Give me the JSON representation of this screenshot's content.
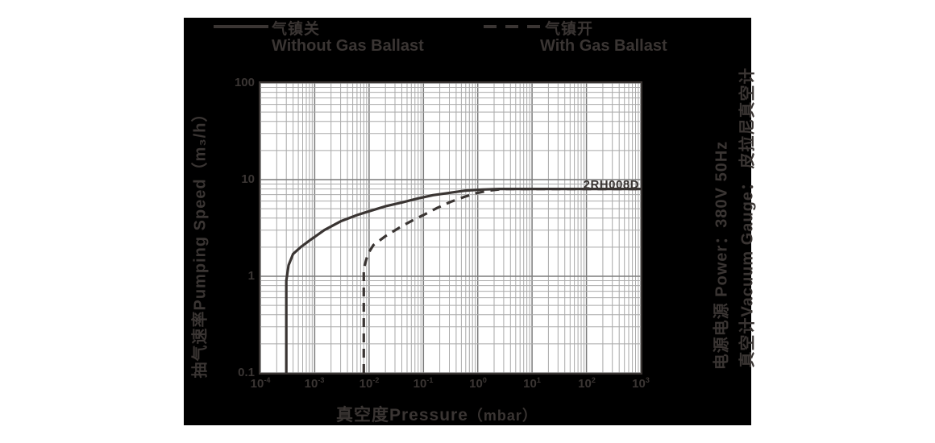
{
  "colors": {
    "page_bg": "#ffffff",
    "panel_bg": "#000000",
    "ink": "#3a3533",
    "grid_minor": "#a9a9a9",
    "grid_major": "#7c7c7c"
  },
  "legend": {
    "without": {
      "zh": "气镇关",
      "en": "Without Gas Ballast",
      "style": "solid"
    },
    "with": {
      "zh": "气镇开",
      "en": "With Gas Ballast",
      "style": "dashed"
    }
  },
  "side_notes": {
    "power": "电源电源  Power：380V 50Hz",
    "gauge": "真空计Vacuum Gauge：  皮拉尼真空计"
  },
  "chart_data": {
    "type": "line",
    "x_scale": "log",
    "y_scale": "log",
    "xlim": [
      0.0001,
      1000
    ],
    "ylim": [
      0.1,
      100
    ],
    "x_tick_exponents": [
      -4,
      -3,
      -2,
      -1,
      0,
      1,
      2,
      3
    ],
    "x_tick_base": "10",
    "y_ticks": [
      {
        "label": "100",
        "value": 100
      },
      {
        "label": "10",
        "value": 10
      },
      {
        "label": "1",
        "value": 1
      },
      {
        "label": "0.1",
        "value": 0.1
      }
    ],
    "xlabel": "真空度Pressure",
    "xunit": "（mbar）",
    "ylabel": "抽气速率Pumping Speed（m₃/h）",
    "annotation": "2RH008D",
    "grid": true,
    "legend_position": "top",
    "series": [
      {
        "name": "Without Gas Ballast (气镇关)",
        "dash": false,
        "ultimate_pressure_mbar": 0.0003,
        "max_speed_m3h": 8,
        "points": [
          [
            0.0003,
            0.1
          ],
          [
            0.0003,
            0.9
          ],
          [
            0.00033,
            1.3
          ],
          [
            0.0004,
            1.7
          ],
          [
            0.00055,
            2.0
          ],
          [
            0.00085,
            2.4
          ],
          [
            0.0015,
            3.0
          ],
          [
            0.003,
            3.7
          ],
          [
            0.006,
            4.3
          ],
          [
            0.01,
            4.7
          ],
          [
            0.02,
            5.3
          ],
          [
            0.04,
            5.8
          ],
          [
            0.08,
            6.4
          ],
          [
            0.15,
            6.9
          ],
          [
            0.3,
            7.3
          ],
          [
            0.6,
            7.7
          ],
          [
            1.2,
            7.9
          ],
          [
            2.5,
            8.0
          ],
          [
            1000,
            8.0
          ]
        ]
      },
      {
        "name": "With Gas Ballast (气镇开)",
        "dash": true,
        "ultimate_pressure_mbar": 0.008,
        "max_speed_m3h": 8,
        "points": [
          [
            0.008,
            0.1
          ],
          [
            0.008,
            1.2
          ],
          [
            0.0095,
            1.7
          ],
          [
            0.012,
            2.1
          ],
          [
            0.02,
            2.6
          ],
          [
            0.04,
            3.3
          ],
          [
            0.07,
            3.9
          ],
          [
            0.1,
            4.3
          ],
          [
            0.18,
            5.1
          ],
          [
            0.32,
            5.9
          ],
          [
            0.55,
            6.6
          ],
          [
            0.9,
            7.2
          ],
          [
            1.6,
            7.7
          ],
          [
            3.0,
            8.0
          ],
          [
            1000,
            8.0
          ]
        ]
      }
    ]
  }
}
